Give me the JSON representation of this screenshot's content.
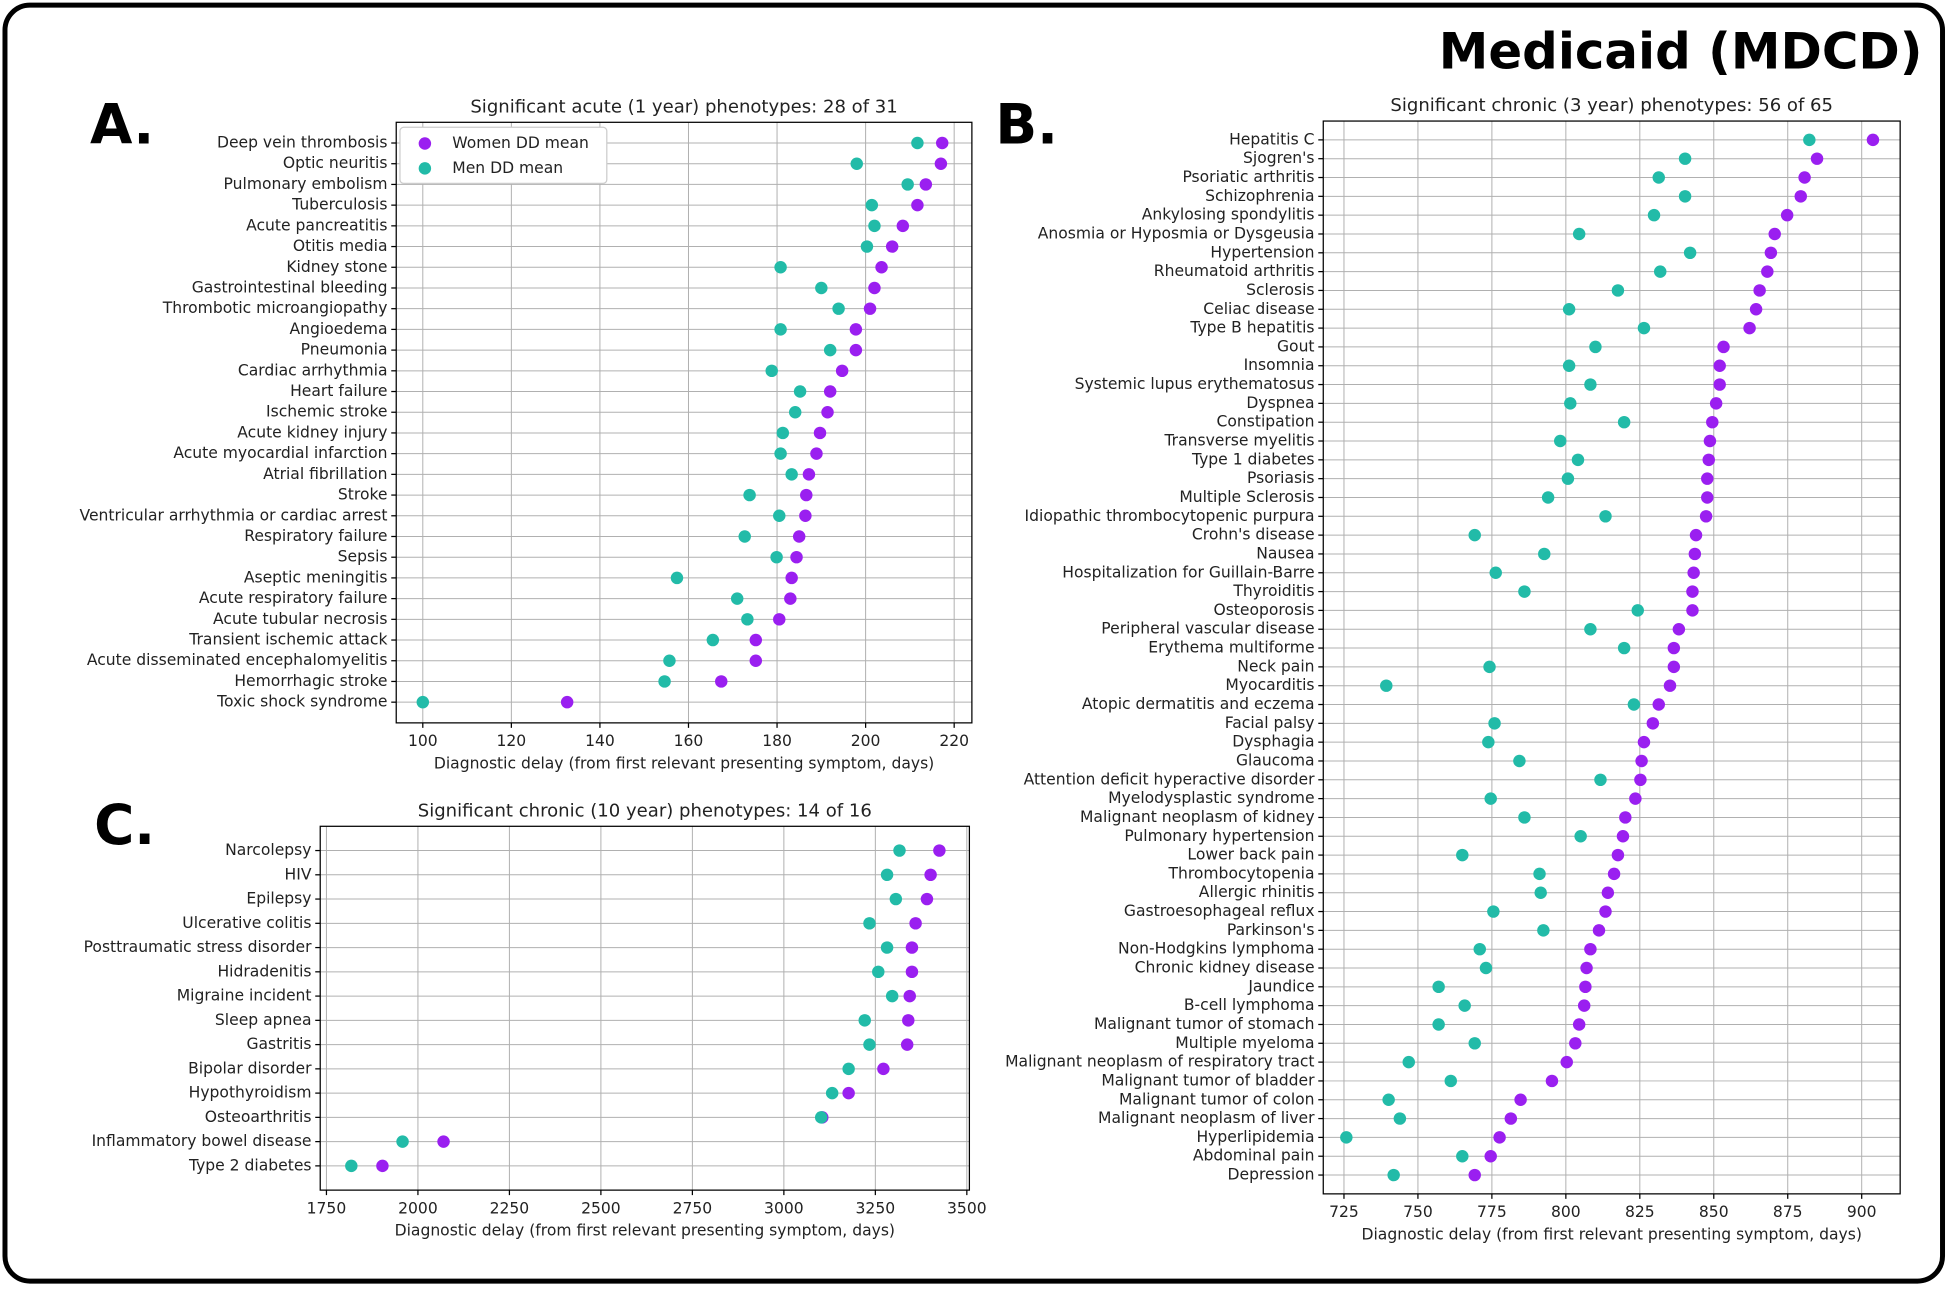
{
  "title": "Medicaid (MDCD)",
  "chart_data": [
    {
      "type": "dot",
      "panel": "A.",
      "title": "Significant acute (1 year) phenotypes: 28 of 31",
      "xlabel": "Diagnostic delay (from first relevant presenting symptom, days)",
      "categories": [
        "Deep vein thrombosis",
        "Optic neuritis",
        "Pulmonary embolism",
        "Tuberculosis",
        "Acute pancreatitis",
        "Otitis media",
        "Kidney stone",
        "Gastrointestinal bleeding",
        "Thrombotic microangiopathy",
        "Angioedema",
        "Pneumonia",
        "Cardiac arrhythmia",
        "Heart failure",
        "Ischemic stroke",
        "Acute kidney injury",
        "Acute myocardial infarction",
        "Atrial fibrillation",
        "Stroke",
        "Ventricular arrhythmia or cardiac arrest",
        "Respiratory failure",
        "Sepsis",
        "Aseptic meningitis",
        "Acute respiratory failure",
        "Acute tubular necrosis",
        "Transient ischemic attack",
        "Acute disseminated encephalomyelitis",
        "Hemorrhagic stroke",
        "Toxic shock syndrome"
      ],
      "series": [
        {
          "name": "Women DD mean",
          "color": "#9a1ff0",
          "values": [
            217.3,
            217,
            213.6,
            211.7,
            208.4,
            206,
            203.6,
            202,
            201,
            197.8,
            197.8,
            194.7,
            192,
            191.4,
            189.7,
            188.9,
            187.2,
            186.6,
            186.4,
            185,
            184.4,
            183.3,
            183,
            180.5,
            175.2,
            175.2,
            167.4,
            132.6
          ]
        },
        {
          "name": "Men DD mean",
          "color": "#22bba8",
          "values": [
            211.7,
            198,
            209.5,
            201.4,
            202,
            200.3,
            180.8,
            190,
            193.9,
            180.8,
            192,
            178.8,
            185.2,
            184.1,
            181.3,
            180.8,
            183.3,
            173.8,
            180.5,
            172.7,
            179.9,
            157.4,
            171,
            173.3,
            165.5,
            155.7,
            154.6,
            100
          ]
        }
      ],
      "xlim": [
        94,
        224
      ],
      "xticks": [
        100,
        120,
        140,
        160,
        180,
        200,
        220
      ],
      "grid": true,
      "legend": "upper left"
    },
    {
      "type": "dot",
      "panel": "B.",
      "title": "Significant chronic (3 year) phenotypes: 56 of 65",
      "xlabel": "Diagnostic delay (from first relevant presenting symptom, days)",
      "categories": [
        "Hepatitis C",
        "Sjogren's",
        "Psoriatic arthritis",
        "Schizophrenia",
        "Ankylosing spondylitis",
        "Anosmia or Hyposmia or Dysgeusia",
        "Hypertension",
        "Rheumatoid arthritis",
        "Sclerosis",
        "Celiac disease",
        "Type B hepatitis",
        "Gout",
        "Insomnia",
        "Systemic lupus erythematosus",
        "Dyspnea",
        "Constipation",
        "Transverse myelitis",
        "Type 1 diabetes",
        "Psoriasis",
        "Multiple Sclerosis",
        "Idiopathic thrombocytopenic purpura",
        "Crohn's disease",
        "Nausea",
        "Hospitalization for Guillain-Barre",
        "Thyroiditis",
        "Osteoporosis",
        "Peripheral vascular disease",
        "Erythema multiforme",
        "Neck pain",
        "Myocarditis",
        "Atopic dermatitis and eczema",
        "Facial palsy",
        "Dysphagia",
        "Glaucoma",
        "Attention deficit hyperactive disorder",
        "Myelodysplastic syndrome",
        "Malignant neoplasm of kidney",
        "Pulmonary hypertension",
        "Lower back pain",
        "Thrombocytopenia",
        "Allergic rhinitis",
        "Gastroesophageal reflux",
        "Parkinson's",
        "Non-Hodgkins lymphoma",
        "Chronic kidney disease",
        "Jaundice",
        "B-cell lymphoma",
        "Malignant tumor of stomach",
        "Multiple myeloma",
        "Malignant neoplasm of respiratory tract",
        "Malignant tumor of bladder",
        "Malignant tumor of colon",
        "Malignant neoplasm of liver",
        "Hyperlipidemia",
        "Abdominal pain",
        "Depression"
      ],
      "series": [
        {
          "color": "#9a1ff0",
          "values": [
            903.8,
            884.9,
            880.7,
            879.4,
            874.8,
            870.6,
            869.3,
            868.1,
            865.5,
            864.3,
            862.1,
            853.3,
            852,
            852,
            850.8,
            849.5,
            848.7,
            848.3,
            847.8,
            847.8,
            847.4,
            844,
            843.6,
            843.2,
            842.8,
            842.8,
            838.2,
            836.5,
            836.5,
            835.2,
            831.4,
            829.4,
            826.4,
            825.6,
            825.2,
            823.5,
            820.1,
            819.3,
            817.6,
            816.3,
            814.2,
            813.4,
            811.2,
            808.3,
            807,
            806.6,
            806.2,
            804.5,
            803.2,
            800.3,
            795.3,
            784.7,
            781.4,
            777.6,
            774.6,
            769.2
          ]
        },
        {
          "color": "#22bba8",
          "values": [
            882.3,
            840.3,
            831.4,
            840.3,
            829.8,
            804.5,
            842,
            831.9,
            817.6,
            801.1,
            826.4,
            810,
            801.1,
            808.3,
            801.5,
            819.7,
            798.1,
            804.1,
            800.7,
            794,
            813.4,
            769.2,
            792.7,
            776.3,
            786,
            824.3,
            808.3,
            819.7,
            774.2,
            739.3,
            823,
            775.9,
            773.8,
            784.3,
            811.7,
            774.6,
            786,
            805,
            765,
            791.1,
            791.5,
            775.5,
            792.4,
            770.9,
            773,
            757,
            765.8,
            757,
            769.2,
            746.9,
            761.1,
            740.1,
            743.9,
            725.8,
            765,
            741.8
          ]
        }
      ],
      "xlim": [
        718,
        913
      ],
      "xticks": [
        725,
        750,
        775,
        800,
        825,
        850,
        875,
        900
      ],
      "grid": true
    },
    {
      "type": "dot",
      "panel": "C.",
      "title": "Significant chronic (10 year) phenotypes: 14 of 16",
      "xlabel": "Diagnostic delay (from first relevant presenting symptom, days)",
      "categories": [
        "Narcolepsy",
        "HIV",
        "Epilepsy",
        "Ulcerative colitis",
        "Posttraumatic stress disorder",
        "Hidradenitis",
        "Migraine incident",
        "Sleep apnea",
        "Gastritis",
        "Bipolar disorder",
        "Hypothyroidism",
        "Osteoarthritis",
        "Inflammatory bowel disease",
        "Type 2 diabetes"
      ],
      "series": [
        {
          "color": "#9a1ff0",
          "values": [
            3425,
            3401,
            3391,
            3360,
            3350,
            3350,
            3344,
            3340,
            3337,
            3272,
            3177,
            3105,
            2070,
            1903
          ]
        },
        {
          "color": "#22bba8",
          "values": [
            3316,
            3282,
            3306,
            3234,
            3282,
            3258,
            3296,
            3221,
            3234,
            3177,
            3132,
            3102,
            1958,
            1818
          ]
        }
      ],
      "xlim": [
        1733,
        3507
      ],
      "xticks": [
        1750,
        2000,
        2250,
        2500,
        2750,
        3000,
        3250,
        3500
      ],
      "grid": true
    }
  ]
}
